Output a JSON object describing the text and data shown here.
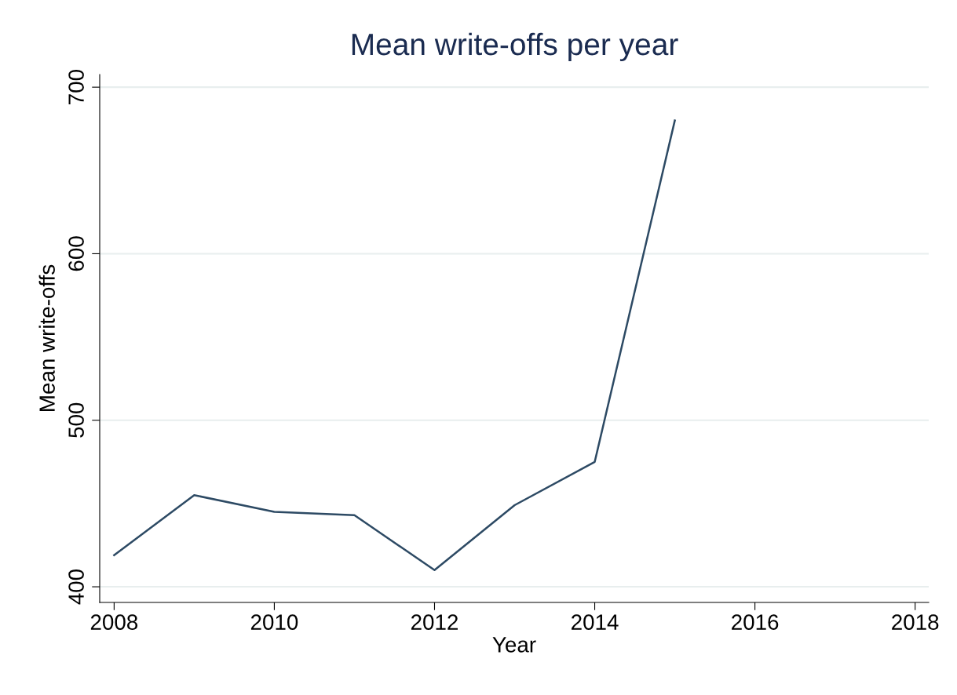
{
  "chart_data": {
    "type": "line",
    "title": "Mean write-offs per year",
    "xlabel": "Year",
    "ylabel": "Mean write-offs",
    "x": [
      2008,
      2009,
      2010,
      2011,
      2012,
      2013,
      2014,
      2015
    ],
    "series": [
      {
        "color": "#2d4a64",
        "values": [
          419,
          455,
          445,
          443,
          410,
          449,
          475,
          680
        ]
      }
    ],
    "xlim": [
      2007.82,
      2018.17
    ],
    "ylim": [
      390.6,
      707.6
    ],
    "xticks": [
      2008,
      2010,
      2012,
      2014,
      2016,
      2018
    ],
    "yticks": [
      400,
      500,
      600,
      700
    ],
    "grid": "y",
    "legend": false,
    "marker": "none",
    "line_style": "solid"
  }
}
